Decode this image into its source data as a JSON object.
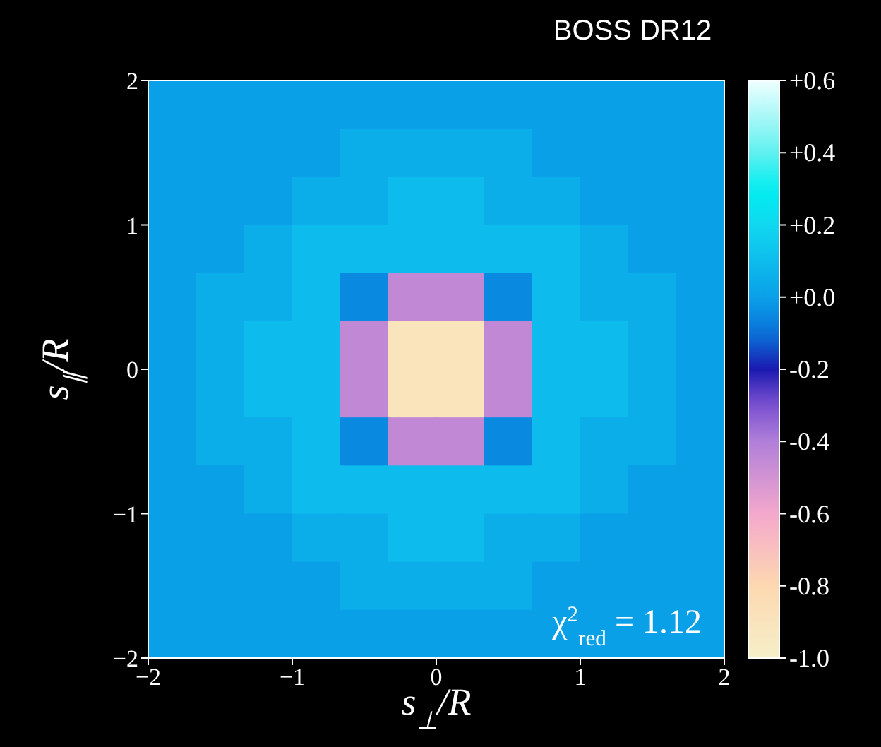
{
  "chart_data": {
    "type": "heatmap",
    "title": "BOSS DR12",
    "xlabel": "s$_{⊥}$/R",
    "ylabel": "s$_{∥}$/R",
    "annotations": [
      "χ$^{2}$$_{red}$ = 1.12"
    ],
    "xlim": [
      -2,
      2
    ],
    "xticks": [
      -2,
      -1,
      0,
      1,
      2
    ],
    "ylim": [
      -2,
      2
    ],
    "yticks": [
      -2,
      -1,
      0,
      1,
      2
    ],
    "cells": [
      [
        0,
        0,
        0,
        0,
        0,
        0,
        0,
        0,
        0,
        0,
        0,
        0
      ],
      [
        0,
        0,
        0,
        0,
        0.05,
        0.05,
        0.05,
        0.05,
        0,
        0,
        0,
        0
      ],
      [
        0,
        0,
        0,
        0.05,
        0.05,
        0.1,
        0.1,
        0.05,
        0.05,
        0,
        0,
        0
      ],
      [
        0,
        0,
        0.05,
        0.1,
        0.1,
        0.1,
        0.1,
        0.1,
        0.1,
        0.05,
        0,
        0
      ],
      [
        0,
        0.05,
        0.05,
        0.1,
        -0.05,
        -0.45,
        -0.45,
        -0.05,
        0.1,
        0.05,
        0.05,
        0
      ],
      [
        0,
        0.05,
        0.1,
        0.1,
        -0.45,
        -0.9,
        -0.9,
        -0.45,
        0.1,
        0.1,
        0.05,
        0
      ],
      [
        0,
        0.05,
        0.1,
        0.1,
        -0.45,
        -0.9,
        -0.9,
        -0.45,
        0.1,
        0.1,
        0.05,
        0
      ],
      [
        0,
        0.05,
        0.05,
        0.1,
        -0.05,
        -0.45,
        -0.45,
        -0.05,
        0.1,
        0.05,
        0.05,
        0
      ],
      [
        0,
        0,
        0.05,
        0.1,
        0.1,
        0.1,
        0.1,
        0.1,
        0.1,
        0.05,
        0,
        0
      ],
      [
        0,
        0,
        0,
        0.05,
        0.05,
        0.1,
        0.1,
        0.05,
        0.05,
        0,
        0,
        0
      ],
      [
        0,
        0,
        0,
        0,
        0.05,
        0.05,
        0.05,
        0.05,
        0,
        0,
        0,
        0
      ],
      [
        0,
        0,
        0,
        0,
        0,
        0,
        0,
        0,
        0,
        0,
        0,
        0
      ]
    ],
    "clim": [
      -1.0,
      0.6
    ],
    "cticks": [
      {
        "value": 0.6,
        "label": "+0.6"
      },
      {
        "value": 0.4,
        "label": "+0.4"
      },
      {
        "value": 0.2,
        "label": "+0.2"
      },
      {
        "value": 0,
        "label": "+0.0"
      },
      {
        "value": -0.2,
        "label": "-0.2"
      },
      {
        "value": -0.4,
        "label": "-0.4"
      },
      {
        "value": -0.6,
        "label": "-0.6"
      },
      {
        "value": -0.8,
        "label": "-0.8"
      },
      {
        "value": -1.0,
        "label": "-1.0"
      }
    ]
  }
}
